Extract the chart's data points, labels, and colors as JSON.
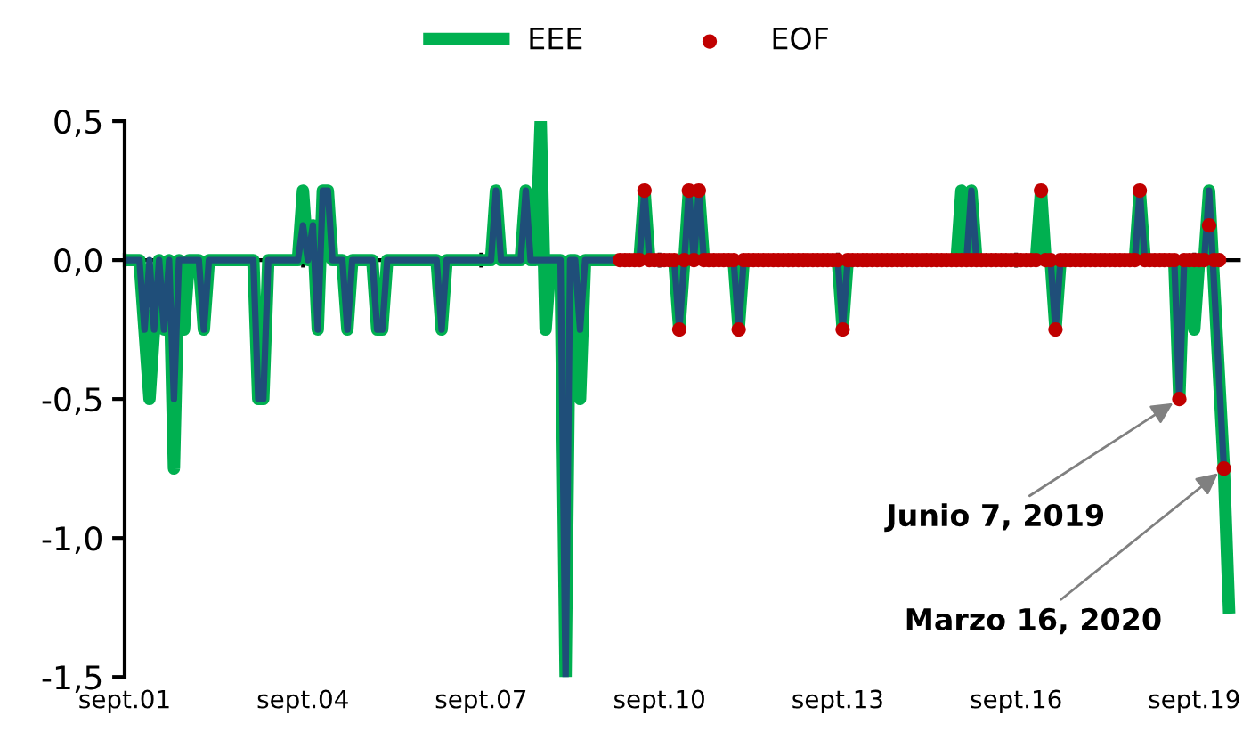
{
  "chart_data": {
    "type": "line",
    "series": [
      {
        "name": "EEE",
        "color": "#00b050",
        "marker": "none",
        "x": [
          "2001-09",
          "2001-12",
          "2002-01",
          "2002-02",
          "2002-03",
          "2002-04",
          "2002-05",
          "2002-06",
          "2002-07",
          "2002-08",
          "2002-09",
          "2002-10",
          "2002-12",
          "2003-01",
          "2003-02",
          "2003-11",
          "2003-12",
          "2004-01",
          "2004-02",
          "2004-08",
          "2004-09",
          "2004-10",
          "2004-11",
          "2004-12",
          "2005-01",
          "2005-02",
          "2005-03",
          "2005-05",
          "2005-06",
          "2005-07",
          "2005-11",
          "2005-12",
          "2006-01",
          "2006-02",
          "2006-12",
          "2007-01",
          "2007-02",
          "2007-11",
          "2007-12",
          "2008-01",
          "2008-05",
          "2008-06",
          "2008-07",
          "2008-08",
          "2008-09",
          "2008-10",
          "2008-11",
          "2009-01",
          "2009-02",
          "2009-03",
          "2009-04",
          "2009-05",
          "2009-06",
          "2010-05",
          "2010-06",
          "2010-07",
          "2010-12",
          "2011-01",
          "2011-02",
          "2011-03",
          "2011-04",
          "2011-05",
          "2011-06",
          "2011-12",
          "2012-01",
          "2012-02",
          "2013-09",
          "2013-10",
          "2013-11",
          "2015-09",
          "2015-10",
          "2015-11",
          "2015-12",
          "2016-01",
          "2017-01",
          "2017-02",
          "2017-03",
          "2017-04",
          "2017-05",
          "2017-06",
          "2018-09",
          "2018-10",
          "2018-11",
          "2019-05",
          "2019-06",
          "2019-07",
          "2019-08",
          "2019-09",
          "2019-10",
          "2019-11",
          "2019-12",
          "2020-03",
          "2020-04"
        ],
        "values": [
          0,
          0,
          -0.25,
          -0.5,
          -0.25,
          0,
          -0.25,
          0,
          -0.75,
          0,
          -0.25,
          0,
          0,
          -0.25,
          0,
          0,
          -0.5,
          -0.5,
          0,
          0,
          0.25,
          0,
          0.125,
          -0.25,
          0.25,
          0.25,
          0,
          0,
          -0.25,
          0,
          0,
          -0.25,
          -0.25,
          0,
          0,
          -0.25,
          0,
          0,
          0.25,
          0,
          0,
          0.25,
          0,
          0,
          0.5,
          -0.25,
          0,
          0,
          -1.5,
          0,
          0,
          -0.5,
          0,
          0,
          0.25,
          0,
          0,
          -0.25,
          0,
          0.25,
          0,
          0.25,
          0,
          0,
          -0.25,
          0,
          0,
          -0.25,
          0,
          0,
          0.25,
          0,
          0.25,
          0,
          0,
          0.25,
          0,
          0,
          -0.25,
          0,
          0,
          0.25,
          0,
          0,
          -0.5,
          0,
          0,
          -0.25,
          0,
          0,
          0.25,
          -0.75,
          -1.25
        ]
      },
      {
        "color": "#1f4e79",
        "marker": "none",
        "x": [
          "2001-09",
          "2001-12",
          "2002-01",
          "2002-02",
          "2002-03",
          "2002-04",
          "2002-05",
          "2002-06",
          "2002-07",
          "2002-08",
          "2002-12",
          "2003-01",
          "2003-02",
          "2003-11",
          "2003-12",
          "2004-01",
          "2004-02",
          "2004-08",
          "2004-09",
          "2004-10",
          "2004-11",
          "2004-12",
          "2005-01",
          "2005-02",
          "2005-03",
          "2005-05",
          "2005-06",
          "2005-07",
          "2005-11",
          "2005-12",
          "2006-01",
          "2006-02",
          "2006-12",
          "2007-01",
          "2007-02",
          "2007-11",
          "2007-12",
          "2008-01",
          "2008-05",
          "2008-06",
          "2008-07",
          "2009-01",
          "2009-02",
          "2009-03",
          "2009-04",
          "2009-05",
          "2009-06",
          "2010-05",
          "2010-06",
          "2010-07",
          "2010-12",
          "2011-01",
          "2011-02",
          "2011-03",
          "2011-04",
          "2011-05",
          "2011-06",
          "2011-12",
          "2012-01",
          "2012-02",
          "2013-09",
          "2013-10",
          "2013-11",
          "2015-11",
          "2015-12",
          "2016-01",
          "2017-04",
          "2017-05",
          "2017-06",
          "2018-09",
          "2018-10",
          "2018-11",
          "2019-05",
          "2019-06",
          "2019-07",
          "2019-11",
          "2019-12",
          "2020-03"
        ],
        "values": [
          0,
          0,
          -0.25,
          0,
          -0.25,
          0,
          -0.25,
          0,
          -0.5,
          0,
          0,
          -0.25,
          0,
          0,
          -0.5,
          -0.5,
          0,
          0,
          0.125,
          0,
          0.125,
          -0.25,
          0.25,
          0.25,
          0,
          0,
          -0.25,
          0,
          0,
          -0.25,
          -0.25,
          0,
          0,
          -0.25,
          0,
          0,
          0.25,
          0,
          0,
          0.25,
          0,
          0,
          -1.5,
          0,
          0,
          -0.25,
          0,
          0,
          0.25,
          0,
          0,
          -0.25,
          0,
          0.25,
          0,
          0.25,
          0,
          0,
          -0.25,
          0,
          0,
          -0.25,
          0,
          0,
          0.25,
          0,
          0,
          -0.25,
          0,
          0,
          0.25,
          0,
          0,
          -0.5,
          0,
          0,
          0.25,
          -0.75
        ]
      },
      {
        "name": "EOF",
        "color": "#c00000",
        "type": "scatter",
        "marker": "circle",
        "x": [
          "2010-01",
          "2010-02",
          "2010-03",
          "2010-04",
          "2010-05",
          "2010-06",
          "2010-07",
          "2010-08",
          "2010-09",
          "2010-10",
          "2010-11",
          "2010-12",
          "2011-01",
          "2011-02",
          "2011-03",
          "2011-04",
          "2011-05",
          "2011-06",
          "2011-07",
          "2011-08",
          "2011-09",
          "2011-10",
          "2011-11",
          "2011-12",
          "2012-01",
          "2012-02",
          "2012-03",
          "2012-04",
          "2012-05",
          "2012-06",
          "2012-07",
          "2012-08",
          "2012-09",
          "2012-10",
          "2012-11",
          "2012-12",
          "2013-01",
          "2013-02",
          "2013-03",
          "2013-04",
          "2013-05",
          "2013-06",
          "2013-07",
          "2013-08",
          "2013-09",
          "2013-10",
          "2013-11",
          "2013-12",
          "2014-01",
          "2014-02",
          "2014-03",
          "2014-04",
          "2014-05",
          "2014-06",
          "2014-07",
          "2014-08",
          "2014-09",
          "2014-10",
          "2014-11",
          "2014-12",
          "2015-01",
          "2015-02",
          "2015-03",
          "2015-04",
          "2015-05",
          "2015-06",
          "2015-07",
          "2015-08",
          "2015-09",
          "2015-10",
          "2015-11",
          "2015-12",
          "2016-01",
          "2016-02",
          "2016-03",
          "2016-04",
          "2016-05",
          "2016-06",
          "2016-07",
          "2016-08",
          "2016-09",
          "2016-10",
          "2016-11",
          "2016-12",
          "2017-01",
          "2017-02",
          "2017-03",
          "2017-04",
          "2017-05",
          "2017-06",
          "2017-07",
          "2017-08",
          "2017-09",
          "2017-10",
          "2017-11",
          "2017-12",
          "2018-01",
          "2018-02",
          "2018-03",
          "2018-04",
          "2018-05",
          "2018-06",
          "2018-07",
          "2018-08",
          "2018-09",
          "2018-10",
          "2018-11",
          "2018-12",
          "2019-01",
          "2019-02",
          "2019-03",
          "2019-04",
          "2019-05",
          "2019-06",
          "2019-07",
          "2019-08",
          "2019-09",
          "2019-10",
          "2019-11",
          "2019-12",
          "2020-01",
          "2020-02",
          "2020-03"
        ],
        "values": [
          0,
          0,
          0,
          0,
          0,
          0.25,
          0,
          0,
          0,
          0,
          0,
          0,
          -0.25,
          0,
          0.25,
          0,
          0.25,
          0,
          0,
          0,
          0,
          0,
          0,
          0,
          -0.25,
          0,
          0,
          0,
          0,
          0,
          0,
          0,
          0,
          0,
          0,
          0,
          0,
          0,
          0,
          0,
          0,
          0,
          0,
          0,
          0,
          -0.25,
          0,
          0,
          0,
          0,
          0,
          0,
          0,
          0,
          0,
          0,
          0,
          0,
          0,
          0,
          0,
          0,
          0,
          0,
          0,
          0,
          0,
          0,
          0,
          0,
          0,
          0,
          0,
          0,
          0,
          0,
          0,
          0,
          0,
          0,
          0,
          0,
          0,
          0,
          0,
          0.25,
          0,
          0,
          -0.25,
          0,
          0,
          0,
          0,
          0,
          0,
          0,
          0,
          0,
          0,
          0,
          0,
          0,
          0,
          0,
          0,
          0.25,
          0,
          0,
          0,
          0,
          0,
          0,
          0,
          -0.5,
          0,
          0,
          0,
          0,
          0,
          0.125,
          0,
          0,
          -0.75
        ]
      }
    ],
    "xlim": [
      "2001-09",
      "2020-06"
    ],
    "xticks": [
      {
        "value": "2001-09",
        "label": "sept.01"
      },
      {
        "value": "2004-09",
        "label": "sept.04"
      },
      {
        "value": "2007-09",
        "label": "sept.07"
      },
      {
        "value": "2010-09",
        "label": "sept.10"
      },
      {
        "value": "2013-09",
        "label": "sept.13"
      },
      {
        "value": "2016-09",
        "label": "sept.16"
      },
      {
        "value": "2019-09",
        "label": "sept.19"
      }
    ],
    "ylim": [
      -1.5,
      0.5
    ],
    "yticks": [
      {
        "value": 0.5,
        "label": "0,5"
      },
      {
        "value": 0,
        "label": "0,0"
      },
      {
        "value": -0.5,
        "label": "-0,5"
      },
      {
        "value": -1,
        "label": "-1,0"
      },
      {
        "value": -1.5,
        "label": "-1,5"
      }
    ],
    "annotations": [
      {
        "text": "Junio 7, 2019",
        "x": "2019-06",
        "y": -0.5
      },
      {
        "text": "Marzo 16, 2020",
        "x": "2020-03",
        "y": -0.75
      }
    ],
    "legend": "top"
  }
}
